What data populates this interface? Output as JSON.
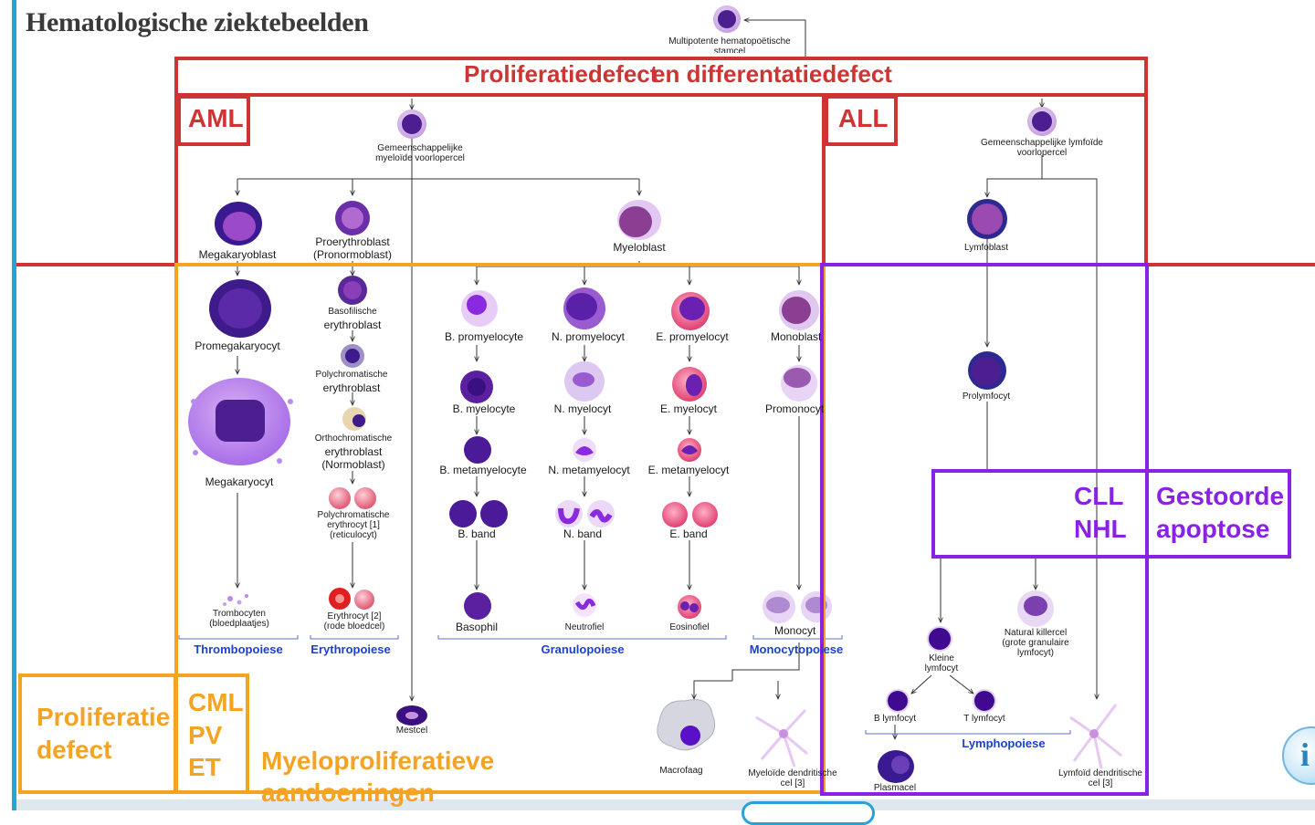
{
  "title": "Hematologische ziektebeelden",
  "colors": {
    "red": "#cf3434",
    "orange": "#f5a323",
    "purple": "#8a22e6",
    "blue": "#1e3fd0",
    "cell": "#4b1f8f",
    "accent": "#26a3d9"
  },
  "boxes": {
    "header": "Proliferatiedefect",
    "header_overlap": "en differentatiedefect",
    "aml": "AML",
    "all": "ALL",
    "cll": "CLL",
    "nhl": "NHL",
    "apoptosis_1": "Gestoorde",
    "apoptosis_2": "apoptose",
    "prolif_1": "Proliferatie",
    "prolif_2": "defect",
    "cml": "CML",
    "pv": "PV",
    "et": "ET",
    "mpn_1": "Myeloproliferatieve",
    "mpn_2": "aandoeningen"
  },
  "cells": {
    "stem_1": "Multipotente hematopoëtische",
    "stem_2": "stamcel",
    "myeloid_1": "Gemeenschappelijke",
    "myeloid_2": "myeloïde voorlopercel",
    "lymphoid_1": "Gemeenschappelijke lymfoïde",
    "lymphoid_2": "voorlopercel",
    "megakaryoblast": "Megakaryoblast",
    "proerythroblast_1": "Proerythroblast",
    "proerythroblast_2": "(Pronormoblast)",
    "myeloblast": "Myeloblast",
    "lymfoblast": "Lymfoblast",
    "promegakaryocyt": "Promegakaryocyt",
    "megakaryocyt": "Megakaryocyt",
    "baso_eb_1": "Basofilische",
    "baso_eb_2": "erythroblast",
    "poly_eb_1": "Polychromatische",
    "poly_eb_2": "erythroblast",
    "ortho_1": "Orthochromatische",
    "ortho_2": "erythroblast",
    "ortho_3": "(Normoblast)",
    "retic_1": "Polychromatische",
    "retic_2": "erythrocyt [1]",
    "retic_3": "(reticulocyt)",
    "b_promyelocyte": "B. promyelocyte",
    "n_promyelocyt": "N. promyelocyt",
    "e_promyelocyt": "E. promyelocyt",
    "monoblast": "Monoblast",
    "b_myelocyte": "B. myelocyte",
    "n_myelocyt": "N. myelocyt",
    "e_myelocyt": "E. myelocyt",
    "promonocyt": "Promonocyt",
    "b_metamyelocyte": "B. metamyelocyte",
    "n_metamyelocyt": "N. metamyelocyt",
    "e_metamyelocyt": "E. metamyelocyt",
    "b_band": "B. band",
    "n_band": "N. band",
    "e_band": "E. band",
    "prolymfocyt": "Prolymfocyt",
    "trombocyten_1": "Trombocyten",
    "trombocyten_2": "(bloedplaatjes)",
    "erythrocyt_1": "Erythrocyt [2]",
    "erythrocyt_2": "(rode bloedcel)",
    "basophil": "Basophil",
    "neutrofiel": "Neutrofiel",
    "eosinofiel": "Eosinofiel",
    "monocyt": "Monocyt",
    "nk_1": "Natural killercel",
    "nk_2": "(grote granulaire",
    "nk_3": "lymfocyt)",
    "kleine_1": "Kleine",
    "kleine_2": "lymfocyt",
    "b_lymfocyt": "B lymfocyt",
    "t_lymfocyt": "T lymfocyt",
    "mestcel": "Mestcel",
    "macrofaag": "Macrofaag",
    "mdc_1": "Myeloïde dendritische",
    "mdc_2": "cel [3]",
    "plasmacel": "Plasmacel",
    "ldc_1": "Lymfoïd dendritische",
    "ldc_2": "cel [3]"
  },
  "lineages": {
    "thrombo": "Thrombopoiese",
    "erythro": "Erythropoiese",
    "granulo": "Granulopoiese",
    "monocyto": "Monocytopoiese",
    "lympho": "Lymphopoiese"
  }
}
